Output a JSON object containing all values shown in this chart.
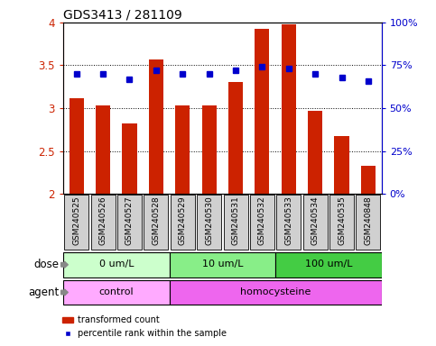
{
  "title": "GDS3413 / 281109",
  "samples": [
    "GSM240525",
    "GSM240526",
    "GSM240527",
    "GSM240528",
    "GSM240529",
    "GSM240530",
    "GSM240531",
    "GSM240532",
    "GSM240533",
    "GSM240534",
    "GSM240535",
    "GSM240848"
  ],
  "red_values": [
    3.12,
    3.03,
    2.82,
    3.57,
    3.03,
    3.03,
    3.3,
    3.93,
    3.98,
    2.97,
    2.67,
    2.33
  ],
  "blue_values": [
    70,
    70,
    67,
    72,
    70,
    70,
    72,
    74,
    73,
    70,
    68,
    66
  ],
  "ylim_left": [
    2.0,
    4.0
  ],
  "ylim_right": [
    0,
    100
  ],
  "yticks_left": [
    2.0,
    2.5,
    3.0,
    3.5,
    4.0
  ],
  "yticks_right": [
    0,
    25,
    50,
    75,
    100
  ],
  "dose_groups": [
    {
      "label": "0 um/L",
      "start": 0,
      "end": 4,
      "color": "#CCFFCC"
    },
    {
      "label": "10 um/L",
      "start": 4,
      "end": 8,
      "color": "#88EE88"
    },
    {
      "label": "100 um/L",
      "start": 8,
      "end": 12,
      "color": "#44CC44"
    }
  ],
  "agent_groups": [
    {
      "label": "control",
      "start": 0,
      "end": 4,
      "color": "#FFAAFF"
    },
    {
      "label": "homocysteine",
      "start": 4,
      "end": 12,
      "color": "#EE66EE"
    }
  ],
  "bar_color": "#CC2200",
  "dot_color": "#0000CC",
  "bar_width": 0.55,
  "label_color_left": "#CC2200",
  "label_color_right": "#0000CC",
  "tick_label_bg": "#D0D0D0"
}
